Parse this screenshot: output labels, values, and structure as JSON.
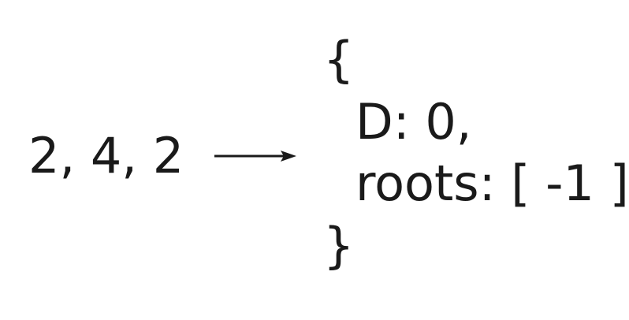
{
  "input": {
    "values": "2, 4, 2"
  },
  "output": {
    "open_brace": "{",
    "d_line": "D: 0,",
    "roots_line": "roots: [ -1 ]",
    "close_brace": "}"
  },
  "colors": {
    "text": "#1a1a1a",
    "background": "#ffffff"
  }
}
